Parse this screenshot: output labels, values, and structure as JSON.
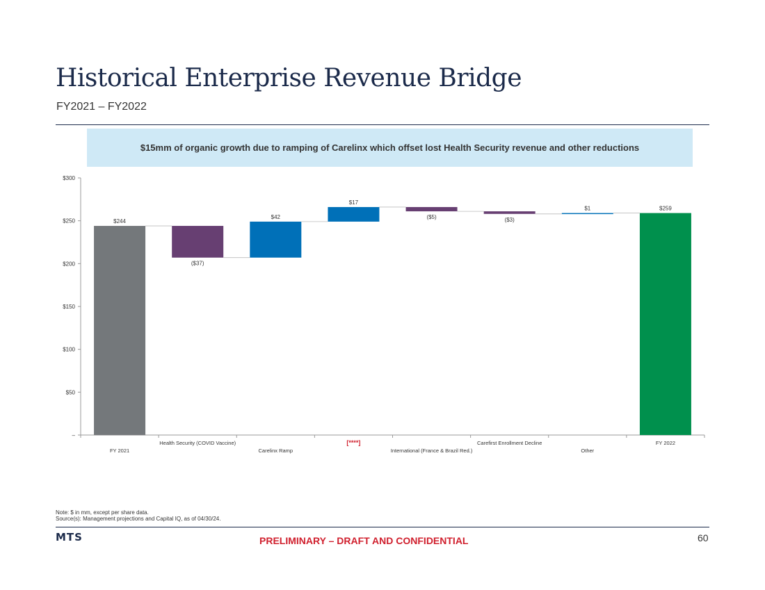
{
  "header": {
    "title": "Historical Enterprise Revenue Bridge",
    "subtitle": "FY2021 – FY2022"
  },
  "callout": {
    "text": "$15mm of organic growth due to ramping of Carelinx which offset lost Health Security revenue and other reductions"
  },
  "chart_data": {
    "type": "bar",
    "subtype": "waterfall",
    "categories": [
      "FY 2021",
      "Health Security (COVID Vaccine)",
      "Carelinx Ramp",
      "[****]",
      "International (France & Brazil Red.)",
      "Carefirst Enrollment Decline",
      "Other",
      "FY 2022"
    ],
    "values": [
      244,
      -37,
      42,
      17,
      -5,
      -3,
      1,
      259
    ],
    "data_labels": [
      "$244",
      "($37)",
      "$42",
      "$17",
      "($5)",
      "($3)",
      "$1",
      "$259"
    ],
    "bar_types": [
      "total",
      "delta",
      "delta",
      "delta",
      "delta",
      "delta",
      "delta",
      "total"
    ],
    "ylim": [
      0,
      300
    ],
    "yticks": [
      0,
      50,
      100,
      150,
      200,
      250,
      300
    ],
    "ytick_labels": [
      "–",
      "$50",
      "$100",
      "$150",
      "$200",
      "$250",
      "$300"
    ],
    "grid": false,
    "legend": "none",
    "colors": {
      "start_total": "#74787b",
      "end_total": "#00904d",
      "increase": "#0070b8",
      "decrease": "#673f72",
      "highlight_label": "#d0202e"
    },
    "highlight_category_index": 3
  },
  "footer": {
    "note": "Note: $ in mm, except per share data.",
    "source": "Source(s): Management projections and Capital IQ, as of 04/30/24.",
    "logo": "MTS",
    "confidential": "PRELIMINARY – DRAFT AND CONFIDENTIAL",
    "page_number": "60"
  }
}
